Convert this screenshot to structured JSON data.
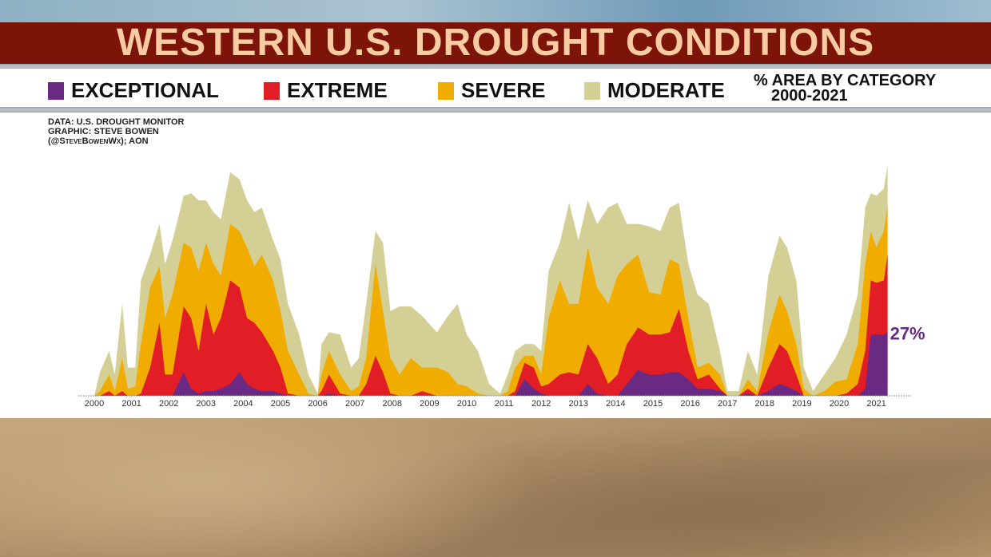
{
  "title": "WESTERN U.S. DROUGHT CONDITIONS",
  "legend": {
    "items": [
      {
        "label": "EXCEPTIONAL",
        "color": "#6a2a84"
      },
      {
        "label": "EXTREME",
        "color": "#e11d25"
      },
      {
        "label": "SEVERE",
        "color": "#f0ad00"
      },
      {
        "label": "MODERATE",
        "color": "#d4cf94"
      }
    ],
    "note_line1": "% AREA BY CATEGORY",
    "note_line2": "2000-2021"
  },
  "source": {
    "line1": "DATA: U.S. DROUGHT MONITOR",
    "line2": "GRAPHIC: STEVE BOWEN",
    "line3": "(@SteveBowenWx); AON"
  },
  "chart_data": {
    "type": "area",
    "stacked": true,
    "ylabel": "% area",
    "ylim": [
      0,
      100
    ],
    "xlim": [
      2000,
      2021.3
    ],
    "grid": false,
    "x_tick_labels": [
      "2000",
      "2001",
      "2002",
      "2003",
      "2004",
      "2005",
      "2006",
      "2007",
      "2008",
      "2009",
      "2010",
      "2011",
      "2012",
      "2013",
      "2014",
      "2015",
      "2016",
      "2017",
      "2018",
      "2019",
      "2020",
      "2021"
    ],
    "annotation": {
      "text": "27%",
      "x": 2021.3,
      "y": 27,
      "color": "#6a2a84"
    },
    "x": [
      2000.0,
      2000.15,
      2000.4,
      2000.55,
      2000.75,
      2000.9,
      2001.1,
      2001.25,
      2001.5,
      2001.75,
      2001.9,
      2002.1,
      2002.4,
      2002.6,
      2002.8,
      2003.0,
      2003.2,
      2003.4,
      2003.65,
      2003.9,
      2004.1,
      2004.3,
      2004.5,
      2004.8,
      2005.0,
      2005.2,
      2005.5,
      2005.75,
      2006.0,
      2006.1,
      2006.3,
      2006.6,
      2006.9,
      2007.1,
      2007.3,
      2007.55,
      2007.75,
      2007.95,
      2008.2,
      2008.5,
      2008.8,
      2009.2,
      2009.5,
      2009.75,
      2010.0,
      2010.3,
      2010.6,
      2010.9,
      2011.1,
      2011.3,
      2011.55,
      2011.8,
      2012.0,
      2012.2,
      2012.5,
      2012.75,
      2013.0,
      2013.25,
      2013.5,
      2013.8,
      2014.05,
      2014.3,
      2014.6,
      2014.9,
      2015.2,
      2015.45,
      2015.7,
      2015.95,
      2016.2,
      2016.5,
      2016.8,
      2017.0,
      2017.3,
      2017.55,
      2017.8,
      2018.1,
      2018.4,
      2018.6,
      2018.85,
      2019.05,
      2019.3,
      2019.6,
      2019.9,
      2020.2,
      2020.5,
      2020.7,
      2020.85,
      2021.0,
      2021.2,
      2021.3
    ],
    "series": [
      {
        "name": "EXCEPTIONAL",
        "color": "#6a2a84",
        "values": [
          0,
          0,
          0,
          0,
          0,
          0,
          0,
          0,
          0,
          0,
          0,
          0,
          10,
          3,
          1,
          2,
          2,
          3,
          5,
          10,
          5,
          3,
          2,
          2,
          1,
          0,
          0,
          0,
          0,
          0,
          1,
          0,
          0,
          0,
          0,
          0,
          0,
          0,
          0,
          0,
          0,
          0,
          0,
          0,
          0,
          0,
          0,
          0,
          0,
          0,
          7,
          3,
          1,
          0,
          0,
          0,
          0,
          5,
          1,
          0,
          0,
          5,
          11,
          9,
          9,
          10,
          10,
          7,
          3,
          3,
          2,
          0,
          0,
          1,
          0,
          2,
          5,
          4,
          2,
          0,
          0,
          0,
          0,
          0,
          0,
          3,
          26,
          26,
          26,
          27
        ]
      },
      {
        "name": "EXTREME",
        "color": "#e11d25",
        "values": [
          0,
          0,
          2,
          0,
          2,
          0,
          0,
          1,
          12,
          31,
          9,
          9,
          28,
          30,
          18,
          37,
          24,
          30,
          44,
          36,
          28,
          28,
          25,
          17,
          11,
          1,
          0,
          0,
          0,
          2,
          8,
          1,
          0,
          0,
          5,
          17,
          10,
          1,
          0,
          0,
          2,
          0,
          0,
          0,
          0,
          0,
          0,
          0,
          0,
          2,
          7,
          9,
          3,
          5,
          9,
          10,
          9,
          17,
          15,
          5,
          9,
          17,
          18,
          17,
          17,
          17,
          27,
          12,
          4,
          6,
          1,
          0,
          0,
          2,
          0,
          10,
          17,
          15,
          7,
          0,
          0,
          0,
          0,
          1,
          5,
          16,
          23,
          22,
          23,
          33
        ]
      },
      {
        "name": "SEVERE",
        "color": "#f0ad00",
        "values": [
          0,
          2,
          7,
          2,
          14,
          3,
          4,
          21,
          34,
          24,
          24,
          34,
          27,
          30,
          34,
          26,
          30,
          18,
          24,
          24,
          30,
          24,
          33,
          30,
          24,
          18,
          9,
          1,
          0,
          7,
          10,
          8,
          2,
          4,
          11,
          39,
          26,
          15,
          9,
          16,
          10,
          12,
          10,
          5,
          4,
          1,
          0,
          0,
          2,
          10,
          3,
          5,
          5,
          28,
          40,
          29,
          30,
          41,
          30,
          34,
          42,
          34,
          31,
          18,
          17,
          31,
          19,
          14,
          5,
          5,
          6,
          0,
          0,
          4,
          2,
          15,
          21,
          17,
          13,
          3,
          0,
          2,
          6,
          6,
          17,
          37,
          21,
          15,
          21,
          21
        ]
      },
      {
        "name": "MODERATE",
        "color": "#d4cf94",
        "values": [
          0,
          8,
          10,
          7,
          23,
          9,
          8,
          27,
          14,
          18,
          23,
          23,
          20,
          23,
          30,
          18,
          22,
          24,
          22,
          22,
          20,
          23,
          20,
          17,
          22,
          20,
          17,
          8,
          1,
          13,
          8,
          17,
          10,
          12,
          23,
          14,
          29,
          20,
          29,
          22,
          22,
          15,
          24,
          34,
          22,
          18,
          5,
          1,
          7,
          7,
          5,
          5,
          10,
          20,
          16,
          43,
          27,
          20,
          27,
          41,
          31,
          17,
          13,
          28,
          27,
          22,
          26,
          23,
          31,
          25,
          10,
          2,
          2,
          12,
          7,
          24,
          25,
          27,
          27,
          9,
          2,
          7,
          10,
          19,
          21,
          24,
          16,
          22,
          18,
          17
        ]
      }
    ]
  }
}
